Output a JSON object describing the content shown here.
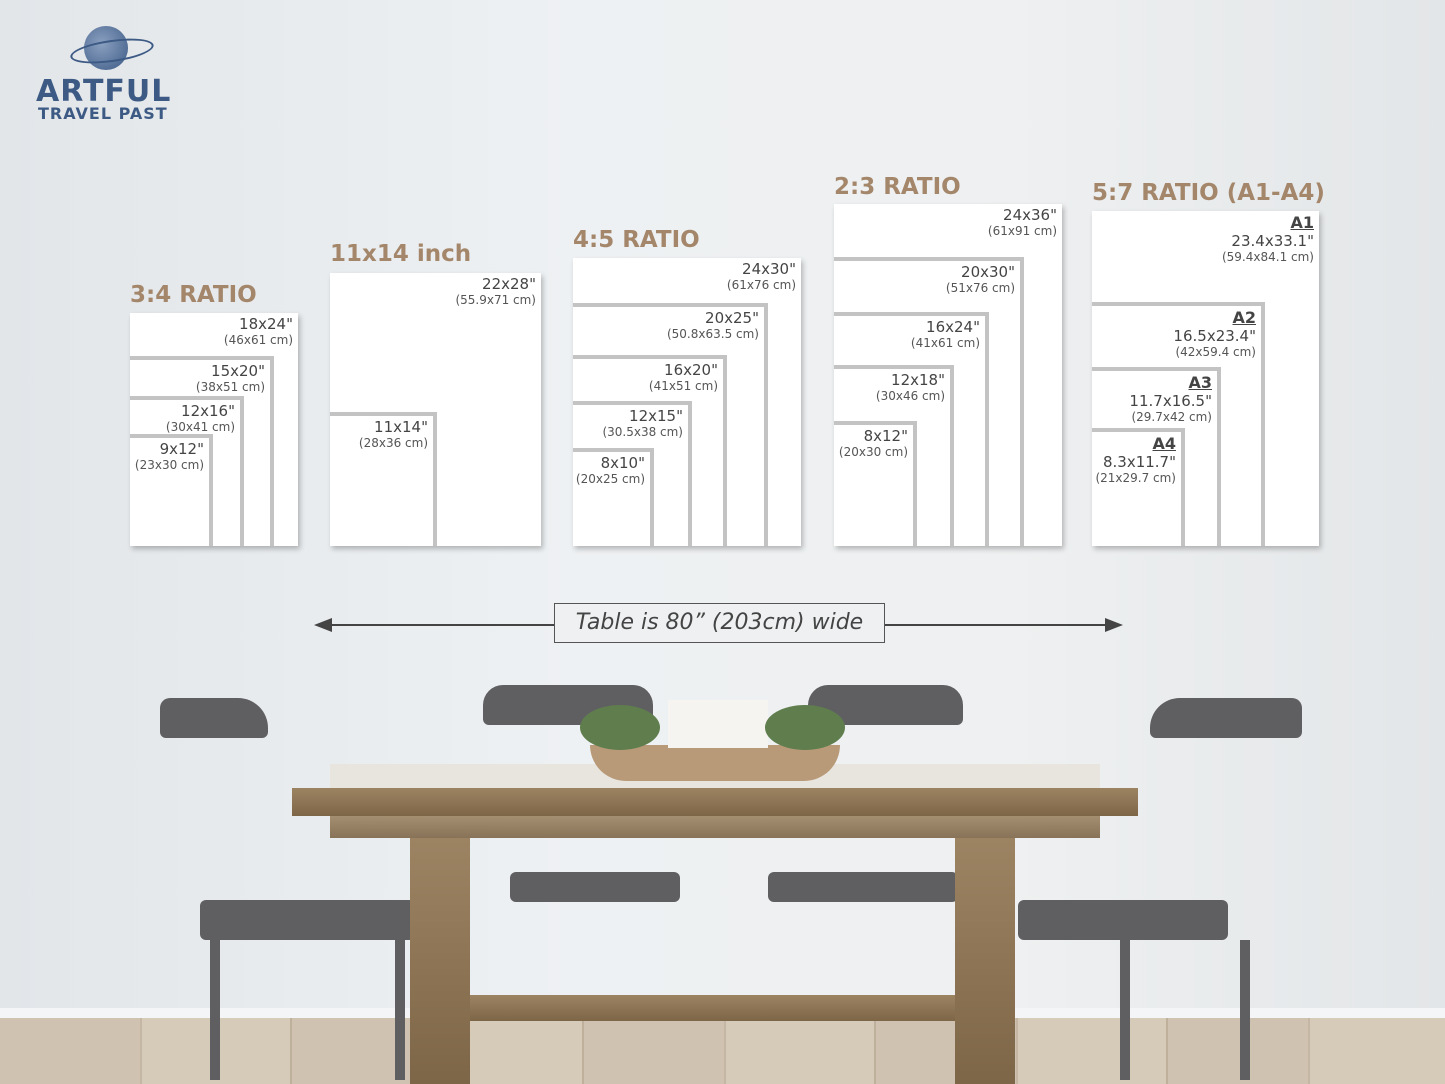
{
  "logo": {
    "line1": "ARTFUL",
    "line2": "TRAVEL PAST"
  },
  "groups": [
    {
      "title": "3:4 RATIO",
      "sizes": [
        {
          "in": "18x24\"",
          "cm": "(46x61 cm)"
        },
        {
          "in": "15x20\"",
          "cm": "(38x51 cm)"
        },
        {
          "in": "12x16\"",
          "cm": "(30x41 cm)"
        },
        {
          "in": "9x12\"",
          "cm": "(23x30 cm)"
        }
      ]
    },
    {
      "title": "11x14 inch",
      "sizes": [
        {
          "in": "22x28\"",
          "cm": "(55.9x71 cm)"
        },
        {
          "in": "11x14\"",
          "cm": "(28x36 cm)"
        }
      ]
    },
    {
      "title": "4:5 RATIO",
      "sizes": [
        {
          "in": "24x30\"",
          "cm": "(61x76 cm)"
        },
        {
          "in": "20x25\"",
          "cm": "(50.8x63.5 cm)"
        },
        {
          "in": "16x20\"",
          "cm": "(41x51 cm)"
        },
        {
          "in": "12x15\"",
          "cm": "(30.5x38 cm)"
        },
        {
          "in": "8x10\"",
          "cm": "(20x25 cm)"
        }
      ]
    },
    {
      "title": "2:3 RATIO",
      "sizes": [
        {
          "in": "24x36\"",
          "cm": "(61x91 cm)"
        },
        {
          "in": "20x30\"",
          "cm": "(51x76 cm)"
        },
        {
          "in": "16x24\"",
          "cm": "(41x61 cm)"
        },
        {
          "in": "12x18\"",
          "cm": "(30x46 cm)"
        },
        {
          "in": "8x12\"",
          "cm": "(20x30 cm)"
        }
      ]
    },
    {
      "title": "5:7 RATIO (A1-A4)",
      "sizes": [
        {
          "code": "A1",
          "in": "23.4x33.1\"",
          "cm": "(59.4x84.1 cm)"
        },
        {
          "code": "A2",
          "in": "16.5x23.4\"",
          "cm": "(42x59.4 cm)"
        },
        {
          "code": "A3",
          "in": "11.7x16.5\"",
          "cm": "(29.7x42 cm)"
        },
        {
          "code": "A4",
          "in": "8.3x11.7\"",
          "cm": "(21x29.7 cm)"
        }
      ]
    }
  ],
  "table_note": "Table is 80” (203cm) wide",
  "colors": {
    "title": "#a4866a",
    "logo": "#3d5a85",
    "frame_border": "#c3c3c3"
  }
}
